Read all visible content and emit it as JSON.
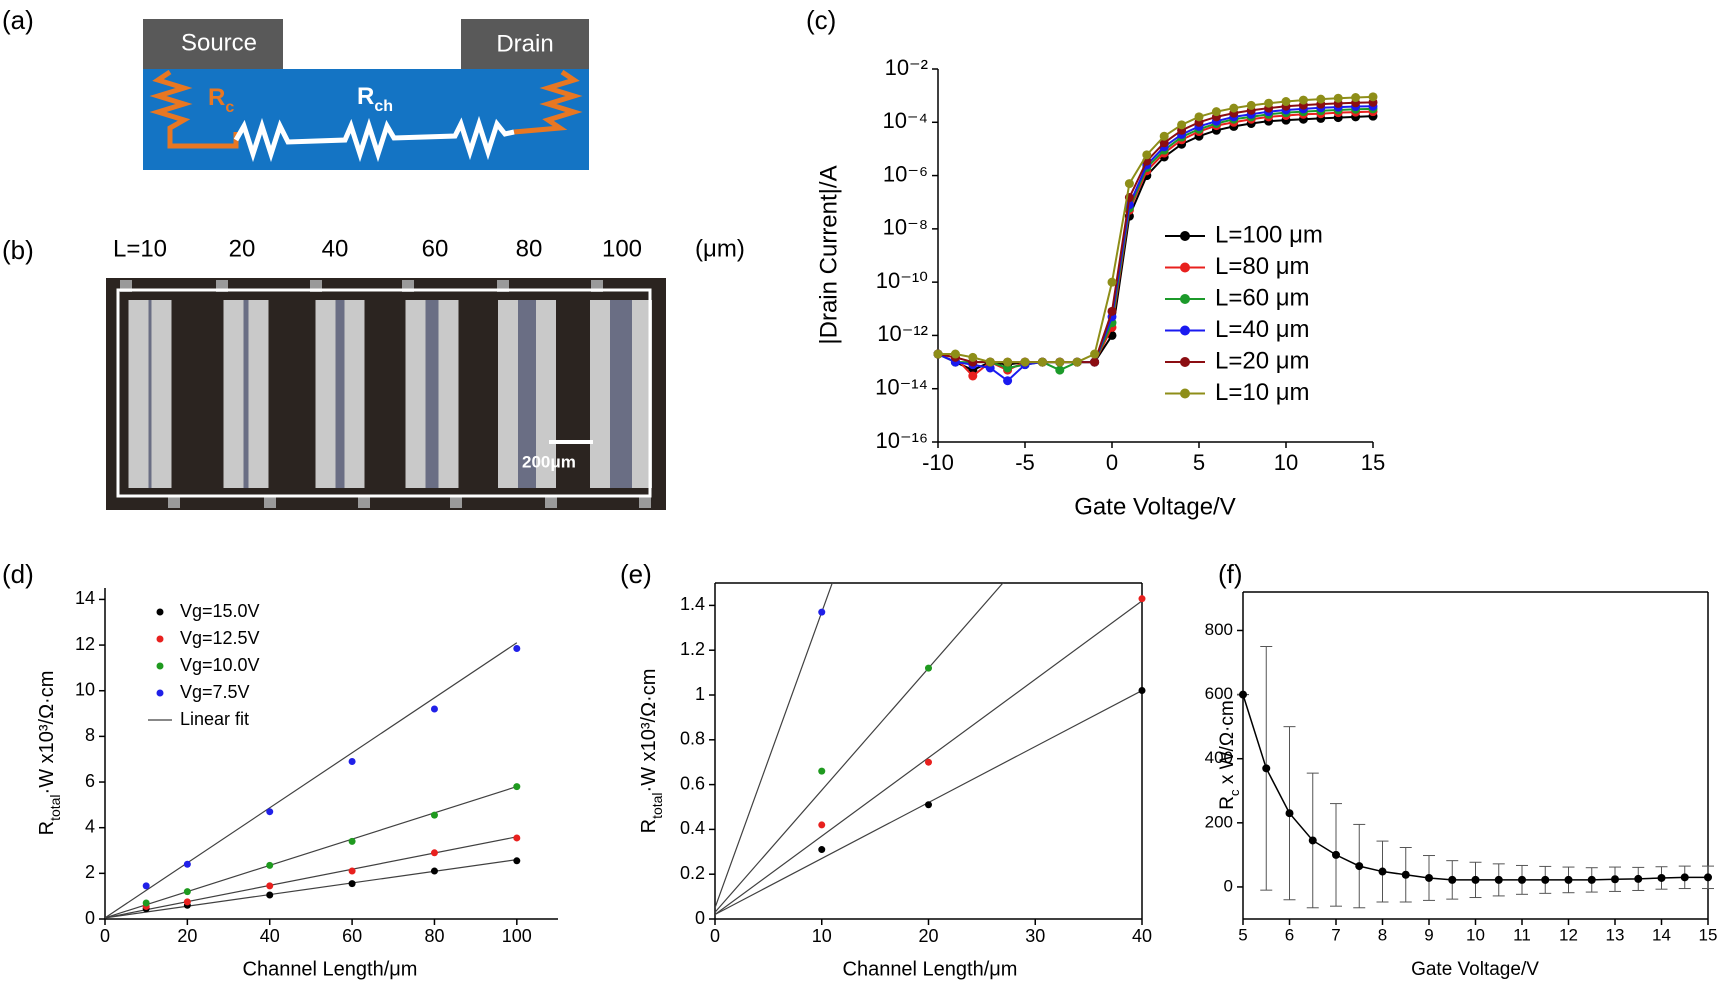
{
  "diagram": {
    "panel_label": "(a)",
    "source": "Source",
    "drain": "Drain",
    "contact_resistance": [
      "R",
      "c"
    ],
    "channel_resistance": [
      "R",
      "ch"
    ]
  },
  "micrograph": {
    "panel_label": "(b)",
    "channel_lengths": [
      "L=10",
      "20",
      "40",
      "60",
      "80",
      "100"
    ],
    "unit": "(μm)",
    "scale_bar": "200μm"
  },
  "chart_data": [
    {
      "type": "line",
      "panel_label": "(c)",
      "xlabel": "Gate Voltage/V",
      "ylabel": "|Drain Current|/A",
      "log_y": true,
      "x": [
        -10,
        -9,
        -8,
        -7,
        -6,
        -5,
        -4,
        -3,
        -2,
        -1,
        0,
        1,
        2,
        3,
        4,
        5,
        6,
        7,
        8,
        9,
        10,
        11,
        12,
        13,
        14,
        15
      ],
      "xlim": [
        -10,
        15
      ],
      "xticks": [
        -10,
        -5,
        0,
        5,
        10,
        15
      ],
      "ylim": [
        1e-16,
        0.01
      ],
      "yticks": [
        {
          "value": 0.01,
          "label": "10⁻²"
        },
        {
          "value": 0.0001,
          "label": "10⁻⁴"
        },
        {
          "value": 1e-06,
          "label": "10⁻⁶"
        },
        {
          "value": 1e-08,
          "label": "10⁻⁸"
        },
        {
          "value": 1e-10,
          "label": "10⁻¹⁰"
        },
        {
          "value": 1e-12,
          "label": "10⁻¹²"
        },
        {
          "value": 1e-14,
          "label": "10⁻¹⁴"
        },
        {
          "value": 1e-16,
          "label": "10⁻¹⁶"
        }
      ],
      "legend": "center right",
      "series": [
        {
          "name": "L=100 μm",
          "color": "#000000",
          "values": [
            2e-13,
            1e-13,
            5e-14,
            1e-13,
            8e-14,
            1e-13,
            1e-13,
            1e-13,
            1e-13,
            1e-13,
            1e-12,
            3e-08,
            1e-06,
            5e-06,
            1.5e-05,
            3e-05,
            5e-05,
            7e-05,
            9e-05,
            0.00011,
            0.00012,
            0.00013,
            0.00014,
            0.00015,
            0.00016,
            0.00017
          ]
        },
        {
          "name": "L=80 μm",
          "color": "#e8201e",
          "values": [
            2e-13,
            1.5e-13,
            3e-14,
            1e-13,
            5e-14,
            1e-13,
            1e-13,
            1e-13,
            1e-13,
            1e-13,
            2e-12,
            5e-08,
            1.5e-06,
            7e-06,
            2.2e-05,
            4.5e-05,
            7.5e-05,
            0.0001,
            0.00013,
            0.00016,
            0.00018,
            0.0002,
            0.00021,
            0.00023,
            0.00024,
            0.00025
          ]
        },
        {
          "name": "L=60 μm",
          "color": "#1c9a2a",
          "values": [
            2e-13,
            1e-13,
            1e-13,
            1e-13,
            6e-14,
            8e-14,
            1e-13,
            5e-14,
            1e-13,
            1e-13,
            3e-12,
            6e-08,
            2e-06,
            9e-06,
            2.8e-05,
            5.5e-05,
            9e-05,
            0.00013,
            0.00016,
            0.0002,
            0.00023,
            0.00025,
            0.00027,
            0.00029,
            0.00031,
            0.00032
          ]
        },
        {
          "name": "L=40 μm",
          "color": "#1a1af0",
          "values": [
            2e-13,
            1e-13,
            8e-14,
            6e-14,
            2e-14,
            8e-14,
            1e-13,
            1e-13,
            1e-13,
            1e-13,
            5e-12,
            8e-08,
            2.5e-06,
            1.2e-05,
            3.5e-05,
            7e-05,
            0.00011,
            0.00016,
            0.0002,
            0.00025,
            0.00029,
            0.00032,
            0.00035,
            0.00037,
            0.00039,
            0.0004
          ]
        },
        {
          "name": "L=20 μm",
          "color": "#8b0d12",
          "values": [
            2e-13,
            1.5e-13,
            1e-13,
            1e-13,
            1e-13,
            1e-13,
            1e-13,
            1e-13,
            1e-13,
            1e-13,
            8e-12,
            1.5e-07,
            3.5e-06,
            1.7e-05,
            5e-05,
            0.0001,
            0.00016,
            0.00022,
            0.00028,
            0.00034,
            0.0004,
            0.00044,
            0.00048,
            0.00051,
            0.00054,
            0.00056
          ]
        },
        {
          "name": "L=10 μm",
          "color": "#8e8e18",
          "values": [
            2e-13,
            2e-13,
            1.5e-13,
            1e-13,
            1e-13,
            1e-13,
            1e-13,
            1e-13,
            1e-13,
            2e-13,
            1e-10,
            5e-07,
            6e-06,
            3e-05,
            8e-05,
            0.00016,
            0.00025,
            0.00034,
            0.00043,
            0.00052,
            0.0006,
            0.00068,
            0.00074,
            0.0008,
            0.00085,
            0.0009
          ]
        }
      ]
    },
    {
      "type": "scatter",
      "panel_label": "(d)",
      "xlabel": "Channel Length/μm",
      "ylabel": [
        "R",
        "total",
        "·W x10³/Ω·cm"
      ],
      "x": [
        10,
        20,
        40,
        60,
        80,
        100
      ],
      "xlim": [
        0,
        110
      ],
      "xticks": [
        0,
        20,
        40,
        60,
        80,
        100
      ],
      "ylim": [
        0,
        14.5
      ],
      "yticks": [
        0,
        2,
        4,
        6,
        8,
        10,
        12,
        14
      ],
      "legend": "upper left",
      "series": [
        {
          "name": "Vg=15.0V",
          "color": "#000000",
          "values": [
            0.45,
            0.6,
            1.05,
            1.55,
            2.1,
            2.55
          ]
        },
        {
          "name": "Vg=12.5V",
          "color": "#e8201e",
          "values": [
            0.55,
            0.75,
            1.45,
            2.1,
            2.9,
            3.55
          ]
        },
        {
          "name": "Vg=10.0V",
          "color": "#1f9a1f",
          "values": [
            0.7,
            1.2,
            2.35,
            3.4,
            4.55,
            5.8
          ]
        },
        {
          "name": "Vg=7.5V",
          "color": "#2020e8",
          "values": [
            1.45,
            2.4,
            4.7,
            6.9,
            9.2,
            11.85
          ]
        }
      ],
      "fit": {
        "name": "Linear fit",
        "color": "#404040",
        "x": [
          0,
          100
        ],
        "lines": [
          [
            0.05,
            2.6
          ],
          [
            0.05,
            3.6
          ],
          [
            0.05,
            5.8
          ],
          [
            0.05,
            12.1
          ]
        ]
      }
    },
    {
      "type": "scatter",
      "panel_label": "(e)",
      "xlabel": "Channel Length/μm",
      "ylabel": [
        "R",
        "total",
        "·W x10³/Ω·cm"
      ],
      "x": [
        10,
        20,
        40
      ],
      "xlim": [
        0,
        40
      ],
      "xticks": [
        0,
        10,
        20,
        30,
        40
      ],
      "ylim": [
        0,
        1.5
      ],
      "yticks": [
        0,
        0.2,
        0.4,
        0.6,
        0.8,
        1,
        1.2,
        1.4
      ],
      "series": [
        {
          "color": "#000000",
          "values": [
            0.31,
            0.51,
            1.02
          ]
        },
        {
          "color": "#e8201e",
          "values": [
            0.42,
            0.7,
            1.43
          ]
        },
        {
          "color": "#1f9a1f",
          "values": [
            0.66,
            1.12,
            null
          ]
        },
        {
          "color": "#2020e8",
          "values": [
            1.37,
            null,
            null
          ]
        }
      ],
      "fit": {
        "color": "#404040",
        "x": [
          0,
          40
        ],
        "lines": [
          [
            0.02,
            1.02
          ],
          [
            0.02,
            1.42
          ],
          [
            0.03,
            2.21
          ],
          [
            0.05,
            5.33
          ]
        ]
      }
    },
    {
      "type": "errorbar",
      "panel_label": "(f)",
      "xlabel": "Gate Voltage/V",
      "ylabel": [
        "R",
        "c",
        " x W/Ω·cm"
      ],
      "x": [
        5,
        5.5,
        6,
        6.5,
        7,
        7.5,
        8,
        8.5,
        9,
        9.5,
        10,
        10.5,
        11,
        11.5,
        12,
        12.5,
        13,
        13.5,
        14,
        14.5,
        15
      ],
      "xlim": [
        5,
        15
      ],
      "xticks": [
        5,
        6,
        7,
        8,
        9,
        10,
        11,
        12,
        13,
        14,
        15
      ],
      "ylim": [
        -100,
        920
      ],
      "yticks": [
        0,
        200,
        400,
        600,
        800
      ],
      "color": "#000000",
      "values": [
        600,
        370,
        230,
        145,
        100,
        65,
        48,
        38,
        28,
        22,
        22,
        22,
        22,
        22,
        22,
        22,
        24,
        25,
        28,
        30,
        30
      ],
      "errors": [
        0,
        380,
        270,
        210,
        160,
        130,
        95,
        85,
        70,
        60,
        55,
        50,
        45,
        42,
        40,
        38,
        38,
        36,
        35,
        35,
        35
      ]
    }
  ]
}
